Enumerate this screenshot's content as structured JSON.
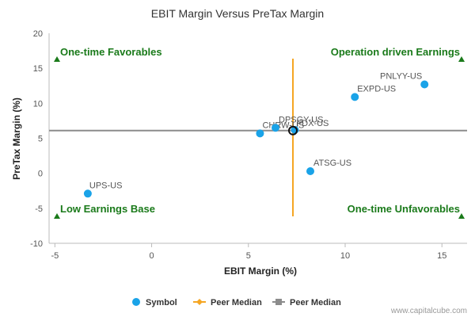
{
  "chart_data": {
    "type": "scatter",
    "title": "EBIT Margin Versus PreTax Margin",
    "xlabel": "EBIT Margin (%)",
    "ylabel": "PreTax Margin (%)",
    "xlim": [
      -5.3,
      16.3
    ],
    "ylim": [
      -10,
      20
    ],
    "xticks": [
      -5,
      0,
      5,
      10,
      15
    ],
    "yticks": [
      -10,
      -5,
      0,
      5,
      10,
      15,
      20
    ],
    "grid": false,
    "point_color": "#1aa3e8",
    "series": [
      {
        "name": "Symbol",
        "points": [
          {
            "label": "UPS-US",
            "x": -3.3,
            "y": -2.9
          },
          {
            "label": "CHRW-US",
            "x": 5.6,
            "y": 5.7
          },
          {
            "label": "DPSGY-US",
            "x": 6.4,
            "y": 6.5
          },
          {
            "label": "FDX-US",
            "x": 7.4,
            "y": 6.2
          },
          {
            "label": "ATSG-US",
            "x": 8.2,
            "y": 0.3
          },
          {
            "label": "EXPD-US",
            "x": 10.5,
            "y": 10.9
          },
          {
            "label": "PNLYY-US",
            "x": 14.1,
            "y": 12.7
          }
        ]
      }
    ],
    "peer_median": {
      "x": 7.3,
      "y": 6.1
    },
    "median_lines": [
      {
        "name": "Peer Median",
        "orientation": "vertical",
        "value": 7.3,
        "color": "#f5a623"
      },
      {
        "name": "Peer Median",
        "orientation": "horizontal",
        "value": 6.1,
        "color": "#8c8c8c"
      }
    ],
    "quadrants": [
      {
        "label": "One-time Favorables",
        "position": "top-left"
      },
      {
        "label": "Operation driven Earnings",
        "position": "top-right"
      },
      {
        "label": "Low Earnings Base",
        "position": "bottom-left"
      },
      {
        "label": "One-time Unfavorables",
        "position": "bottom-right"
      }
    ],
    "legend": {
      "placement": "bottom",
      "entries": [
        {
          "label": "Symbol",
          "marker": "circle",
          "color": "#1aa3e8"
        },
        {
          "label": "Peer Median",
          "marker": "diamond-line",
          "color": "#f5a623"
        },
        {
          "label": "Peer Median",
          "marker": "square-line",
          "color": "#8c8c8c"
        }
      ]
    },
    "quadrant_marker_color": "#1a7a1a",
    "credit": "www.capitalcube.com"
  }
}
